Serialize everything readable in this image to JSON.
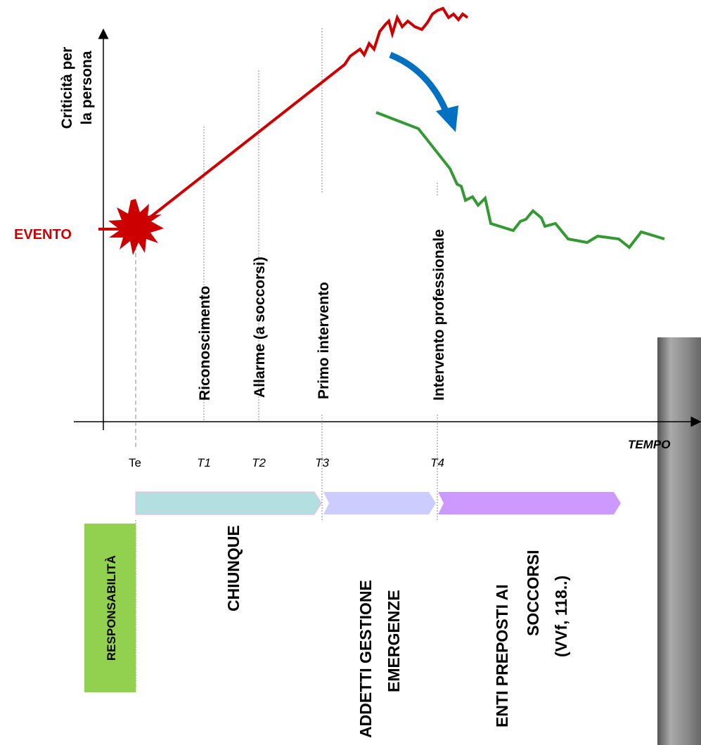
{
  "y_axis_label": [
    "Criticità per",
    "la persona"
  ],
  "event_label": "EVENTO",
  "x_axis_label": "TEMPO",
  "milestones": [
    "Riconoscimento",
    "Allarme (a soccorsi)",
    "Primo intervento",
    "Intervento professionale"
  ],
  "time_labels": [
    "Te",
    "T1",
    "T2",
    "T3",
    "T4"
  ],
  "responsibility": {
    "title": "RESPONSABILITÀ",
    "phases": [
      [
        "CHIUNQUE"
      ],
      [
        "ADDETTI GESTIONE",
        "EMERGENZE"
      ],
      [
        "ENTI PREPOSTI AI",
        "SOCCORSI",
        "(VVf, 118..)"
      ]
    ]
  }
}
